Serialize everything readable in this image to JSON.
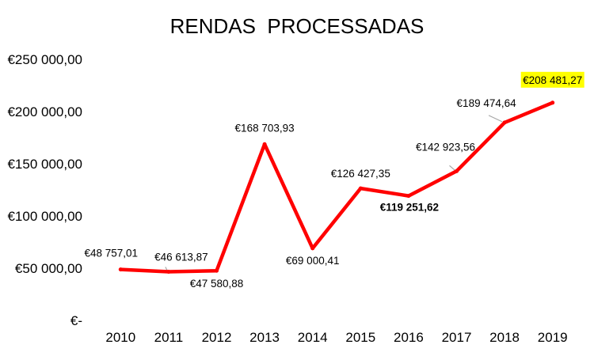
{
  "chart_data": {
    "type": "line",
    "title": "RENDAS  PROCESSADAS",
    "xlabel": "",
    "ylabel": "",
    "categories": [
      "2010",
      "2011",
      "2012",
      "2013",
      "2014",
      "2015",
      "2016",
      "2017",
      "2018",
      "2019"
    ],
    "series": [
      {
        "color": "#ff0000",
        "values": [
          48757.01,
          46613.87,
          47580.88,
          168703.93,
          69000.41,
          126427.35,
          119251.62,
          142923.56,
          189474.64,
          208481.27
        ],
        "data_labels": [
          "€48 757,01",
          "€46 613,87",
          "€47 580,88",
          "€168 703,93",
          "€69 000,41",
          "€126 427,35",
          "€119 251,62",
          "€142 923,56",
          "€189 474,64",
          "€208 481,27"
        ]
      }
    ],
    "ylim": [
      0,
      250000
    ],
    "yticks": [
      0,
      50000,
      100000,
      150000,
      200000,
      250000
    ],
    "ytick_labels": [
      "€-",
      "€50 000,00",
      "€100 000,00",
      "€150 000,00",
      "€200 000,00",
      "€250 000,00"
    ],
    "grid": false,
    "emphasis": {
      "bold_label_category": "2016",
      "highlight_label_category": "2019",
      "highlight_color": "#ffff00"
    }
  }
}
